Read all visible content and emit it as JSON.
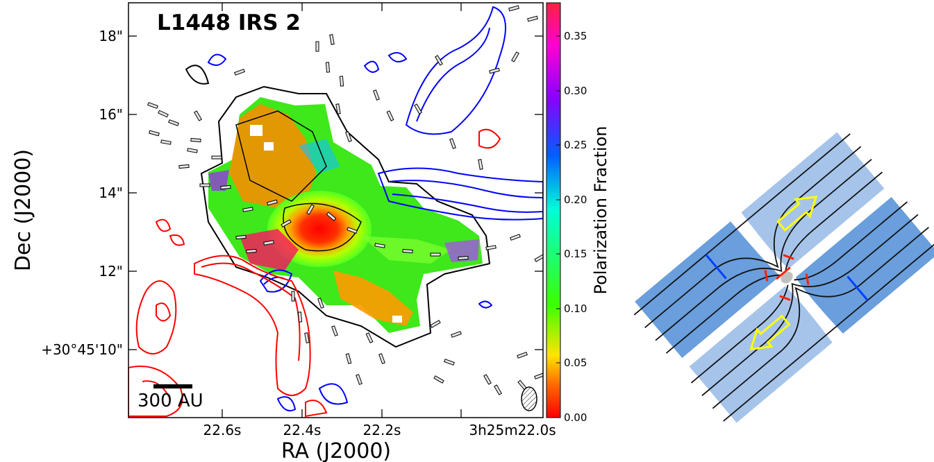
{
  "left_panel": {
    "title": "L1448 IRS 2",
    "scale_bar_label": "300 AU",
    "x_axis": {
      "label": "RA (J2000)",
      "tick_labels": [
        "22.6s",
        "22.4s",
        "22.2s",
        "3h25m22.0s"
      ]
    },
    "y_axis": {
      "label": "Dec (J2000)",
      "tick_labels": [
        "18\"",
        "16\"",
        "14\"",
        "12\"",
        "+30°45'10\""
      ]
    },
    "colorbar": {
      "label": "Polarization Fraction",
      "tick_labels": [
        "0.35",
        "0.30",
        "0.25",
        "0.20",
        "0.15",
        "0.10",
        "0.05",
        "0.00"
      ],
      "range": [
        0.0,
        0.38
      ],
      "colormap": [
        "#ff0000",
        "#ff6a00",
        "#ffe400",
        "#3cff00",
        "#00ffd8",
        "#0060ff",
        "#8a00ff",
        "#ff00d0",
        "#ff2040"
      ]
    },
    "contour_colors": {
      "dust": "#000000",
      "redshifted_outflow": "#ff0000",
      "blueshifted_outflow": "#0000ff"
    }
  },
  "right_panel": {
    "colors": {
      "outflow_cavity": "#a6c4ea",
      "envelope": "#6a9edc",
      "field_lines": "#111111",
      "arrows": "#ffff00",
      "red_segments": "#ff2000",
      "blue_segments": "#0040ff"
    }
  }
}
